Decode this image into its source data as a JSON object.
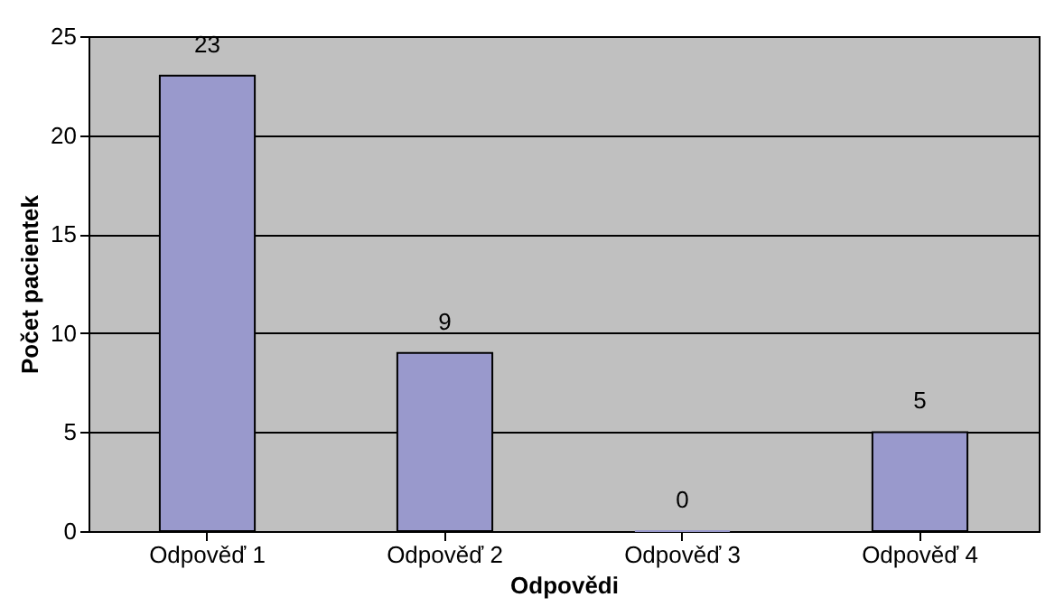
{
  "chart_data": {
    "type": "bar",
    "xlabel": "Odpovědi",
    "ylabel": "Počet pacientek",
    "categories": [
      "Odpověď 1",
      "Odpověď 2",
      "Odpověď 3",
      "Odpověď 4"
    ],
    "values": [
      23,
      9,
      0,
      5
    ],
    "color": "#9999cc",
    "ylim": [
      0,
      25
    ],
    "yticks": [
      0,
      5,
      10,
      15,
      20,
      25
    ],
    "grid": "y",
    "data_labels": true
  }
}
